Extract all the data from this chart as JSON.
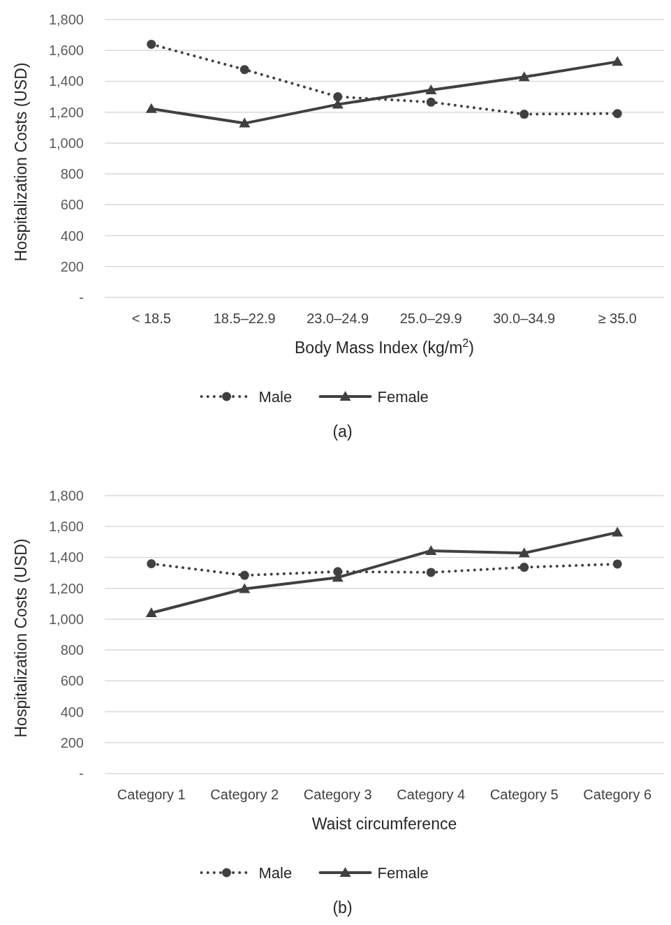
{
  "chart_data": [
    {
      "type": "line",
      "xlabel": "Body Mass Index (kg/m$^{2}$)",
      "ylabel": "Hospitalization Costs (USD)",
      "categories": [
        "< 18.5",
        "18.5–22.9",
        "23.0–24.9",
        "25.0–29.9",
        "30.0–34.9",
        "≥ 35.0"
      ],
      "ylim": [
        0,
        1800
      ],
      "yticks": [
        {
          "value": 0,
          "label": "-"
        },
        {
          "value": 200,
          "label": "200"
        },
        {
          "value": 400,
          "label": "400"
        },
        {
          "value": 600,
          "label": "600"
        },
        {
          "value": 800,
          "label": "800"
        },
        {
          "value": 1000,
          "label": "1,000"
        },
        {
          "value": 1200,
          "label": "1,200"
        },
        {
          "value": 1400,
          "label": "1,400"
        },
        {
          "value": 1600,
          "label": "1,600"
        },
        {
          "value": 1800,
          "label": "1,800"
        }
      ],
      "grid": "y",
      "legend": "bottom",
      "annotations": [
        "(a)"
      ],
      "series": [
        {
          "name": "Male",
          "color": "#404040",
          "marker": "circle",
          "line_style": "dotted",
          "values": [
            1640,
            1476,
            1300,
            1265,
            1187,
            1191
          ]
        },
        {
          "name": "Female",
          "color": "#404040",
          "marker": "triangle",
          "line_style": "solid",
          "values": [
            1222,
            1128,
            1250,
            1343,
            1428,
            1527
          ]
        }
      ]
    },
    {
      "type": "line",
      "xlabel": "Waist circumference",
      "ylabel": "Hospitalization Costs (USD)",
      "categories": [
        "Category 1",
        "Category 2",
        "Category 3",
        "Category 4",
        "Category 5",
        "Category 6"
      ],
      "ylim": [
        0,
        1800
      ],
      "yticks": [
        {
          "value": 0,
          "label": "-"
        },
        {
          "value": 200,
          "label": "200"
        },
        {
          "value": 400,
          "label": "400"
        },
        {
          "value": 600,
          "label": "600"
        },
        {
          "value": 800,
          "label": "800"
        },
        {
          "value": 1000,
          "label": "1,000"
        },
        {
          "value": 1200,
          "label": "1,200"
        },
        {
          "value": 1400,
          "label": "1,400"
        },
        {
          "value": 1600,
          "label": "1,600"
        },
        {
          "value": 1800,
          "label": "1,800"
        }
      ],
      "grid": "y",
      "legend": "bottom",
      "annotations": [
        "(b)"
      ],
      "series": [
        {
          "name": "Male",
          "color": "#404040",
          "marker": "circle",
          "line_style": "dotted",
          "values": [
            1359,
            1284,
            1308,
            1303,
            1336,
            1357
          ]
        },
        {
          "name": "Female",
          "color": "#404040",
          "marker": "triangle",
          "line_style": "solid",
          "values": [
            1040,
            1196,
            1270,
            1443,
            1428,
            1562
          ]
        }
      ]
    }
  ]
}
